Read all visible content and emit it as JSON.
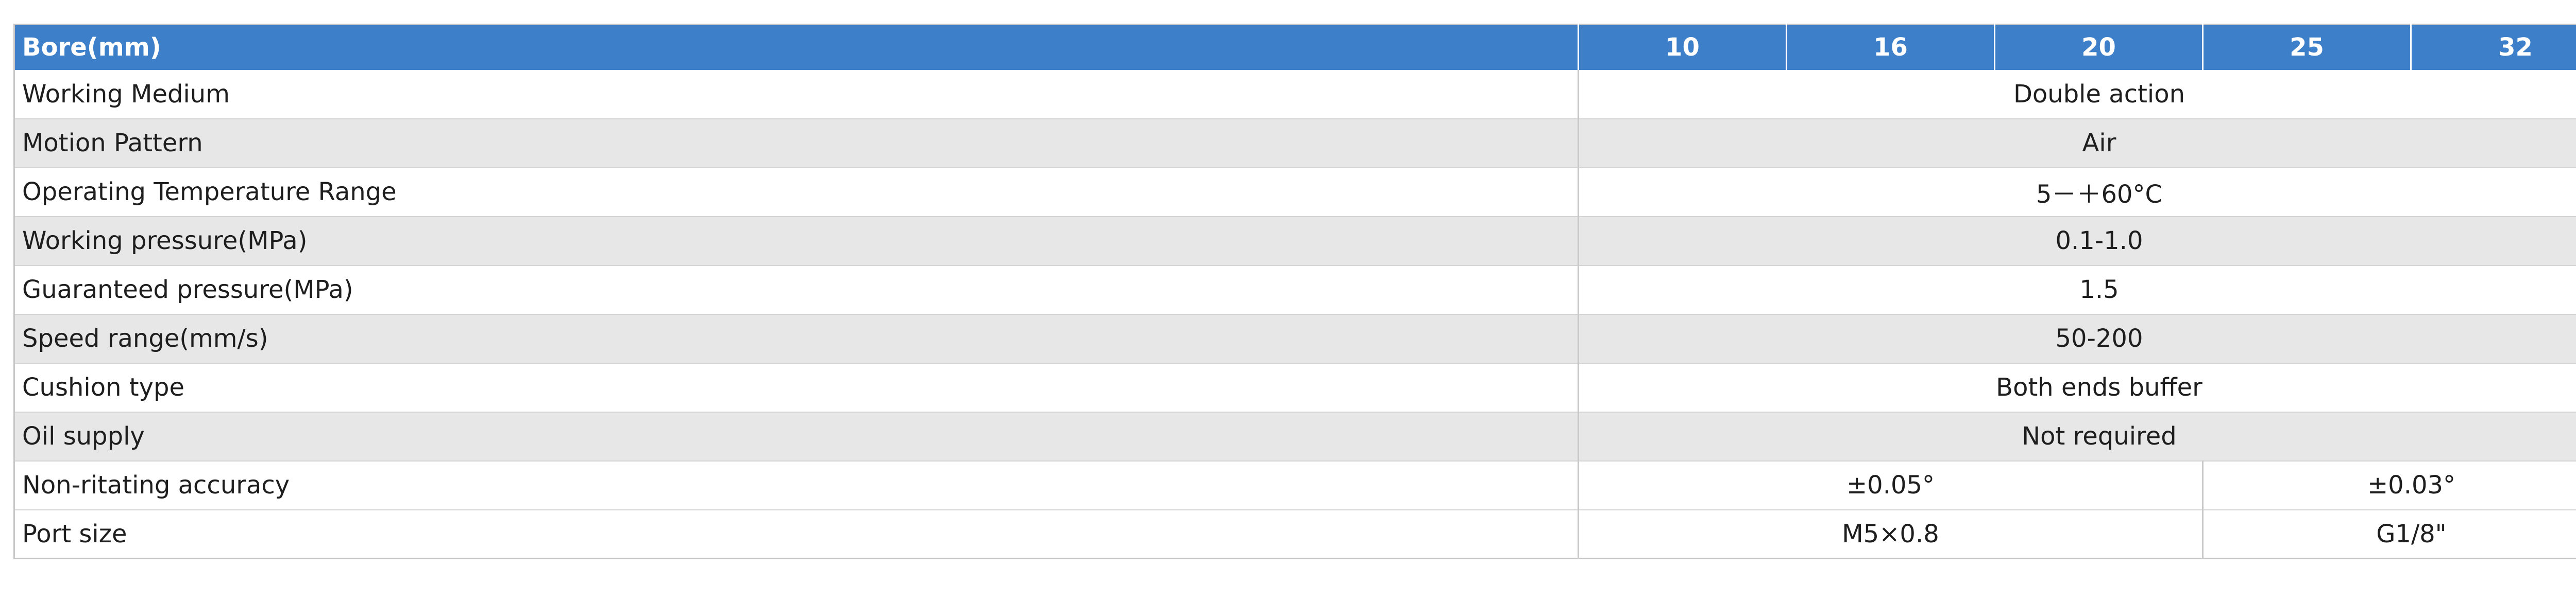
{
  "header": {
    "label": "Bore(mm)",
    "bores": [
      "10",
      "16",
      "20",
      "25",
      "32"
    ]
  },
  "rows": [
    {
      "label": "Working Medium",
      "values": [
        "Double action"
      ]
    },
    {
      "label": "Motion Pattern",
      "values": [
        "Air"
      ]
    },
    {
      "label": "Operating Temperature Range",
      "values": [
        "5－＋60°C"
      ]
    },
    {
      "label": "Working pressure(MPa)",
      "values": [
        "0.1-1.0"
      ]
    },
    {
      "label": "Guaranteed pressure(MPa)",
      "values": [
        "1.5"
      ]
    },
    {
      "label": "Speed range(mm/s)",
      "values": [
        "50-200"
      ]
    },
    {
      "label": "Cushion type",
      "values": [
        "Both ends buffer"
      ]
    },
    {
      "label": "Oil supply",
      "values": [
        "Not required"
      ]
    },
    {
      "label": "Non-ritating accuracy",
      "values": [
        "±0.05°",
        "±0.03°"
      ]
    },
    {
      "label": "Port size",
      "values": [
        "M5×0.8",
        "G1/8\""
      ]
    }
  ],
  "colors": {
    "header_bg": "#3d7fc8",
    "header_text": "#ffffff",
    "row_alt_bg": "#e7e7e7",
    "row_bg": "#ffffff"
  }
}
